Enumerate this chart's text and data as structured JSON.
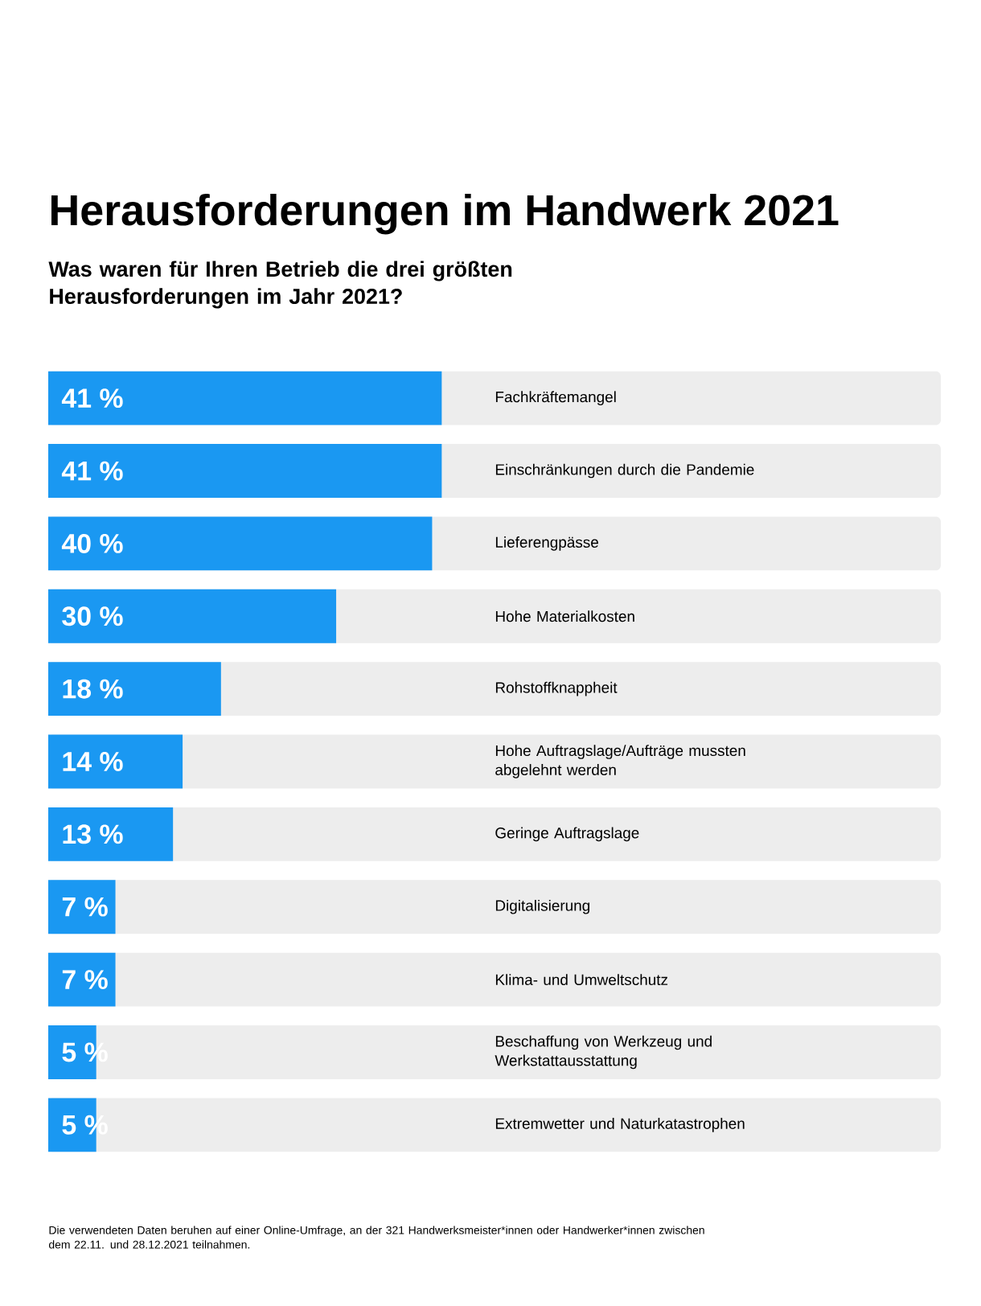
{
  "chart_data": {
    "type": "bar",
    "orientation": "horizontal",
    "title": "Herausforderungen im Handwerk 2021",
    "subtitle": "Was waren für Ihren Betrieb die drei größten Herausforderungen im Jahr 2021?",
    "categories": [
      "Fachkräftemangel",
      "Einschränkungen durch die Pandemie",
      "Lieferengpässe",
      "Hohe Materialkosten",
      "Rohstoffknappheit",
      "Hohe Auftragslage/Aufträge mussten abgelehnt werden",
      "Geringe Auftragslage",
      "Digitalisierung",
      "Klima- und Umweltschutz",
      "Beschaffung von Werkzeug und Werkstattausstattung",
      "Extremwetter und Naturkatastrophen"
    ],
    "values": [
      41,
      41,
      40,
      30,
      18,
      14,
      13,
      7,
      7,
      5,
      5
    ],
    "value_labels": [
      "41 %",
      "41 %",
      "40 %",
      "30 %",
      "18 %",
      "14 %",
      "13 %",
      "7 %",
      "7 %",
      "5 %",
      "5 %"
    ],
    "color": "#1a98f2",
    "xlim": [
      0,
      93
    ],
    "tick_labels": false,
    "annotations": [
      "Die verwendeten Daten beruhen auf einer Online-Umfrage, an der 321 Handwerksmeister*innen oder Handwerker*innen zwischen dem 22.11. und 28.12.2021 teilnahmen."
    ]
  }
}
